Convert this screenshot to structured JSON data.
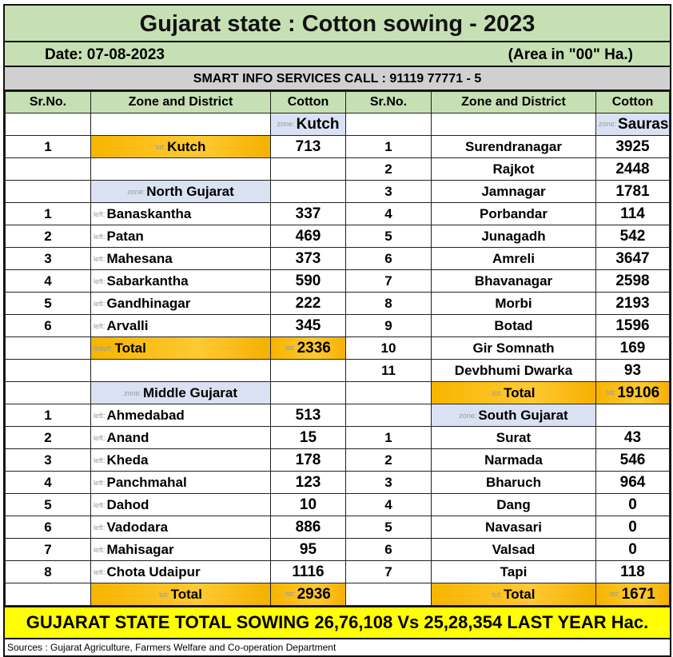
{
  "title": "Gujarat state : Cotton sowing - 2023",
  "date": "Date: 07-08-2023",
  "unit": "(Area in \"00\" Ha.)",
  "smart_info": "SMART INFO SERVICES CALL : 91119 77771 - 5",
  "headers": [
    "Sr.No.",
    "Zone and District",
    "Cotton",
    "Sr.No.",
    "Zone and District",
    "Cotton"
  ],
  "rows": [
    [
      [
        "",
        "",
        "zone:Kutch",
        ""
      ],
      [
        "",
        "",
        "zone:Saurashtra",
        ""
      ]
    ],
    [
      [
        "1",
        "tot:Kutch",
        "713"
      ],
      [
        "1",
        "Surendranagar",
        "3925"
      ]
    ],
    [
      [
        "",
        "",
        ""
      ],
      [
        "2",
        "Rajkot",
        "2448"
      ]
    ],
    [
      [
        "",
        "zone:North Gujarat",
        ""
      ],
      [
        "3",
        "Jamnagar",
        "1781"
      ]
    ],
    [
      [
        "1",
        "left:Banaskantha",
        "337"
      ],
      [
        "4",
        "Porbandar",
        "114"
      ]
    ],
    [
      [
        "2",
        "left:Patan",
        "469"
      ],
      [
        "5",
        "Junagadh",
        "542"
      ]
    ],
    [
      [
        "3",
        "left:Mahesana",
        "373"
      ],
      [
        "6",
        "Amreli",
        "3647"
      ]
    ],
    [
      [
        "4",
        "left:Sabarkantha",
        "590"
      ],
      [
        "7",
        "Bhavanagar",
        "2598"
      ]
    ],
    [
      [
        "5",
        "left:Gandhinagar",
        "222"
      ],
      [
        "8",
        "Morbi",
        "2193"
      ]
    ],
    [
      [
        "6",
        "left:Arvalli",
        "345"
      ],
      [
        "9",
        "Botad",
        "1596"
      ]
    ],
    [
      [
        "",
        "totleft:Total",
        "tot:2336"
      ],
      [
        "10",
        "Gir Somnath",
        "169"
      ]
    ],
    [
      [
        "",
        "",
        ""
      ],
      [
        "11",
        "Devbhumi Dwarka",
        "93"
      ]
    ],
    [
      [
        "",
        "zone:Middle Gujarat",
        ""
      ],
      [
        "",
        "tot:Total",
        "tot:19106"
      ]
    ],
    [
      [
        "1",
        "left:Ahmedabad",
        "513"
      ],
      [
        "",
        "zone:South Gujarat",
        ""
      ]
    ],
    [
      [
        "2",
        "left:Anand",
        "15"
      ],
      [
        "1",
        "Surat",
        "43"
      ]
    ],
    [
      [
        "3",
        "left:Kheda",
        "178"
      ],
      [
        "2",
        "Narmada",
        "546"
      ]
    ],
    [
      [
        "4",
        "left:Panchmahal",
        "123"
      ],
      [
        "3",
        "Bharuch",
        "964"
      ]
    ],
    [
      [
        "5",
        "left:Dahod",
        "10"
      ],
      [
        "4",
        "Dang",
        "0"
      ]
    ],
    [
      [
        "6",
        "left:Vadodara",
        "886"
      ],
      [
        "5",
        "Navasari",
        "0"
      ]
    ],
    [
      [
        "7",
        "left:Mahisagar",
        "95"
      ],
      [
        "6",
        "Valsad",
        "0"
      ]
    ],
    [
      [
        "8",
        "left:Chota Udaipur",
        "1116"
      ],
      [
        "7",
        "Tapi",
        "118"
      ]
    ],
    [
      [
        "",
        "tot:Total",
        "tot:2936"
      ],
      [
        "",
        "tot:Total",
        "tot:1671"
      ]
    ]
  ],
  "banner": "GUJARAT STATE TOTAL SOWING 26,76,108 Vs 25,28,354 LAST YEAR Hac.",
  "sources": "Sources : Gujarat Agriculture, Farmers Welfare and Co-operation Department"
}
